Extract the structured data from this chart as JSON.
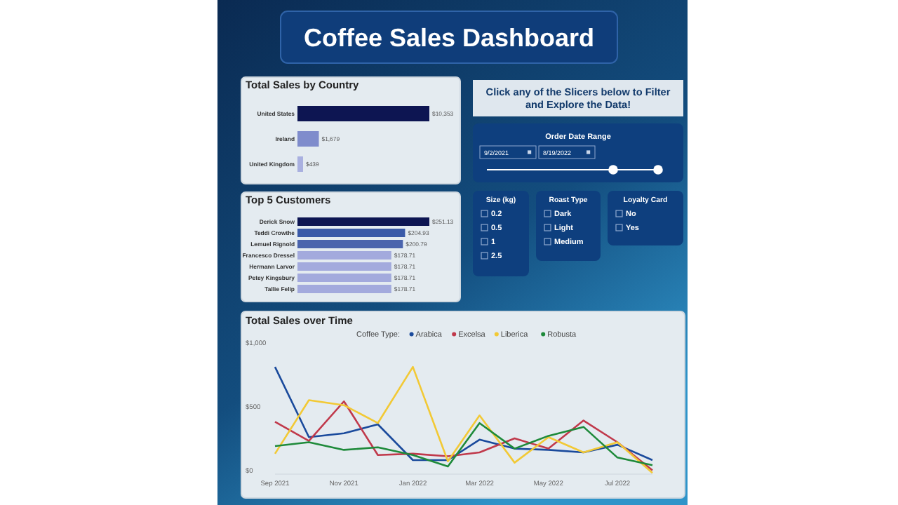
{
  "chart_data": [
    {
      "type": "other",
      "title": "Coffee Sales Dashboard"
    },
    {
      "type": "bar",
      "orientation": "horizontal",
      "title": "Total Sales by Country",
      "categories": [
        "United States",
        "Ireland",
        "United Kingdom"
      ],
      "values": [
        10353,
        1679,
        439
      ],
      "value_labels": [
        "$10,353",
        "$1,679",
        "$439"
      ],
      "colors": [
        "#0d1552",
        "#7f8ccc",
        "#a9b0e0"
      ]
    },
    {
      "type": "bar",
      "orientation": "horizontal",
      "title": "Top 5 Customers",
      "categories": [
        "Derick Snow",
        "Teddi Crowthe",
        "Lemuel Rignold",
        "Francesco Dressel",
        "Hermann Larvor",
        "Petey Kingsbury",
        "Tallie Felip"
      ],
      "values": [
        251.13,
        204.93,
        200.79,
        178.71,
        178.71,
        178.71,
        178.71
      ],
      "value_labels": [
        "$251.13",
        "$204.93",
        "$200.79",
        "$178.71",
        "$178.71",
        "$178.71",
        "$178.71"
      ],
      "colors": [
        "#0d1552",
        "#3a5aa8",
        "#4a64ad",
        "#a3aadd",
        "#a3aadd",
        "#a3aadd",
        "#a3aadd"
      ]
    },
    {
      "type": "other",
      "annotations": [
        "Click any of the Slicers below to Filter and Explore the Data!",
        "Order Date Range",
        "9/2/2021",
        "8/19/2022",
        "Size (kg)",
        "0.2",
        "0.5",
        "1",
        "2.5",
        "Roast Type",
        "Dark",
        "Light",
        "Medium",
        "Loyalty Card",
        "No",
        "Yes"
      ]
    },
    {
      "type": "line",
      "title": "Total Sales over Time",
      "legend_title": "Coffee Type:",
      "legend": "top",
      "x": [
        "2021-09",
        "2021-10",
        "2021-11",
        "2021-12",
        "2022-01",
        "2022-02",
        "2022-03",
        "2022-04",
        "2022-05",
        "2022-06",
        "2022-07",
        "2022-08"
      ],
      "xlim": [
        "2021-09",
        "2022-08"
      ],
      "xticks": [
        {
          "value": "2021-09",
          "label": "Sep 2021"
        },
        {
          "value": "2021-11",
          "label": "Nov 2021"
        },
        {
          "value": "2022-01",
          "label": "Jan 2022"
        },
        {
          "value": "2022-03",
          "label": "Mar 2022"
        },
        {
          "value": "2022-05",
          "label": "May 2022"
        },
        {
          "value": "2022-07",
          "label": "Jul 2022"
        }
      ],
      "ylim": [
        0,
        1000
      ],
      "yticks": [
        {
          "value": 0,
          "label": "$0"
        },
        {
          "value": 500,
          "label": "$500"
        },
        {
          "value": 1000,
          "label": "$1,000"
        }
      ],
      "series": [
        {
          "name": "Arabica",
          "color": "#1a4a9c",
          "values": [
            840,
            290,
            320,
            390,
            110,
            110,
            270,
            200,
            190,
            170,
            230,
            110
          ]
        },
        {
          "name": "Excelsa",
          "color": "#c0394b",
          "values": [
            410,
            260,
            570,
            150,
            160,
            140,
            170,
            280,
            200,
            420,
            250,
            30
          ]
        },
        {
          "name": "Liberica",
          "color": "#f2c935",
          "values": [
            160,
            580,
            540,
            400,
            840,
            100,
            460,
            90,
            290,
            170,
            250,
            10
          ]
        },
        {
          "name": "Robusta",
          "color": "#1e8a3a",
          "values": [
            220,
            250,
            190,
            210,
            150,
            60,
            400,
            200,
            300,
            370,
            130,
            70
          ]
        }
      ]
    }
  ]
}
